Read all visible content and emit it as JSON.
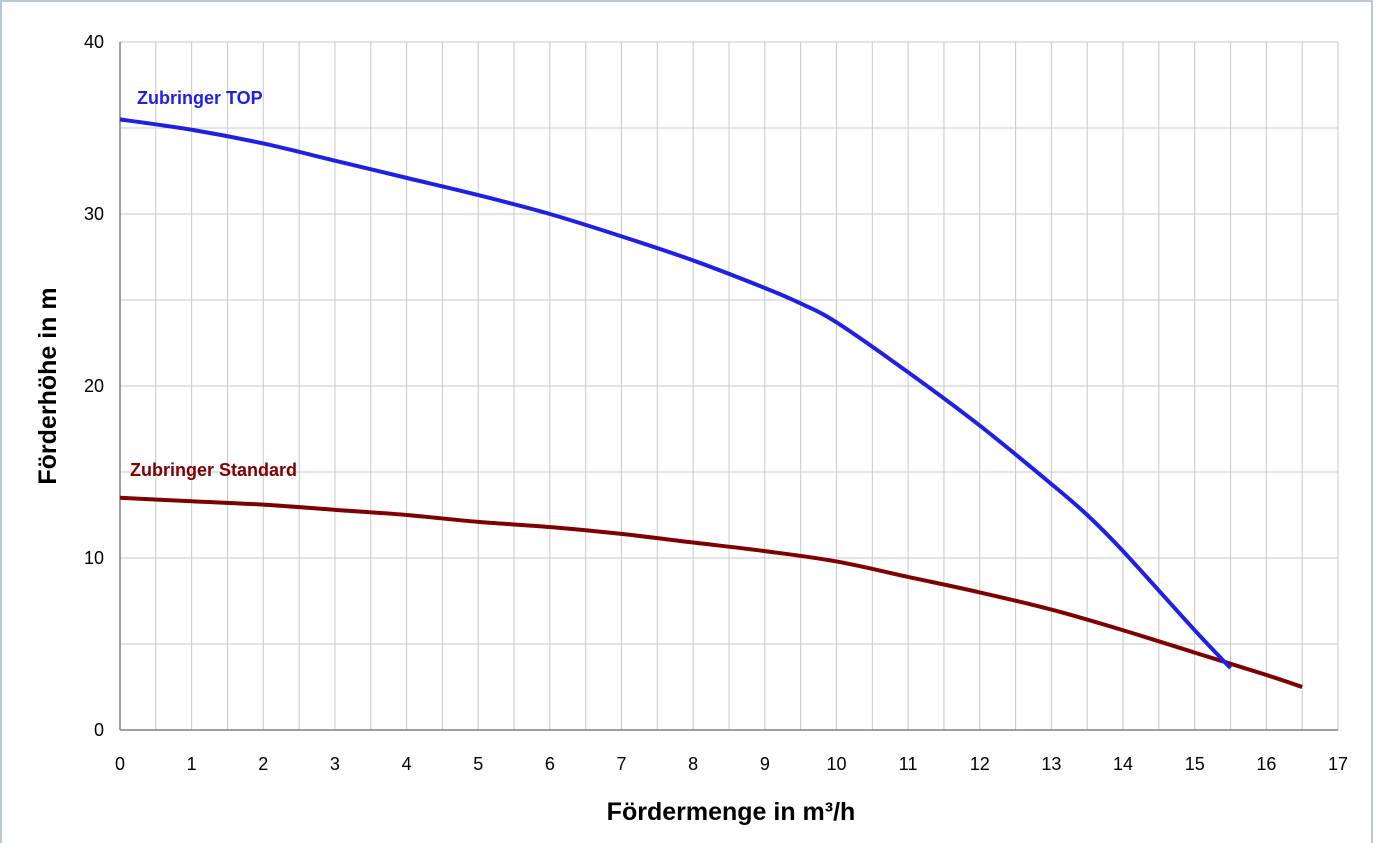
{
  "chart_data": {
    "type": "line",
    "title": "",
    "xlabel": "Fördermenge in m³/h",
    "ylabel": "Förderhöhe in m",
    "xlim": [
      0,
      17
    ],
    "ylim": [
      0,
      40
    ],
    "x_ticks": [
      "0",
      "1",
      "2",
      "3",
      "4",
      "5",
      "6",
      "7",
      "8",
      "9",
      "10",
      "11",
      "12",
      "13",
      "14",
      "15",
      "16",
      "17"
    ],
    "y_ticks": [
      "0",
      "10",
      "20",
      "30",
      "40"
    ],
    "grid": true,
    "legend": "inline labels",
    "series": [
      {
        "name": "Zubringer TOP",
        "color": "#1f1fe6",
        "x": [
          0,
          1,
          2,
          3,
          4,
          5,
          6,
          7,
          8,
          9,
          9.5,
          10,
          11,
          12,
          13,
          13.5,
          14,
          15,
          15.5
        ],
        "y": [
          35.5,
          34.9,
          34.1,
          33.1,
          32.1,
          31.1,
          30.0,
          28.7,
          27.3,
          25.7,
          24.8,
          23.7,
          20.8,
          17.7,
          14.3,
          12.5,
          10.4,
          5.8,
          3.6
        ]
      },
      {
        "name": "Zubringer Standard",
        "color": "#7f0000",
        "x": [
          0,
          1,
          2,
          3,
          4,
          5,
          6,
          7,
          8,
          9,
          10,
          11,
          12,
          13,
          14,
          15,
          16,
          16.5
        ],
        "y": [
          13.5,
          13.3,
          13.1,
          12.8,
          12.5,
          12.1,
          11.8,
          11.4,
          10.9,
          10.4,
          9.8,
          8.9,
          8.0,
          7.0,
          5.8,
          4.5,
          3.2,
          2.5
        ]
      }
    ]
  }
}
